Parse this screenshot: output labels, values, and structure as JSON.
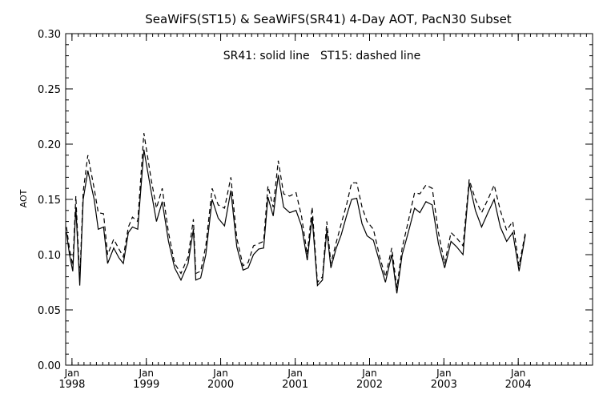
{
  "chart_data": {
    "type": "line",
    "title": "SeaWiFS(ST15) & SeaWiFS(SR41) 4-Day AOT, PacN30 Subset",
    "annotation": "SR41: solid line   ST15: dashed line",
    "ylabel": "AOT",
    "xlabel": "",
    "xlim": [
      "1997-12-01",
      "2004-12-31"
    ],
    "ylim": [
      0.0,
      0.3
    ],
    "yticks": [
      "0.00",
      "0.05",
      "0.10",
      "0.15",
      "0.20",
      "0.25",
      "0.30"
    ],
    "xticks": [
      {
        "month": "Jan",
        "year": "1998",
        "date": "1998-01-01"
      },
      {
        "month": "Jan",
        "year": "1999",
        "date": "1999-01-01"
      },
      {
        "month": "Jan",
        "year": "2000",
        "date": "2000-01-01"
      },
      {
        "month": "Jan",
        "year": "2001",
        "date": "2001-01-01"
      },
      {
        "month": "Jan",
        "year": "2002",
        "date": "2002-01-01"
      },
      {
        "month": "Jan",
        "year": "2003",
        "date": "2003-01-01"
      },
      {
        "month": "Jan",
        "year": "2004",
        "date": "2004-01-01"
      }
    ],
    "grid": false,
    "legend": "none",
    "series": [
      {
        "name": "SR41",
        "style": "solid",
        "color": "#000000",
        "points": [
          [
            "1997-12-05",
            0.12
          ],
          [
            "1997-12-20",
            0.1
          ],
          [
            "1998-01-05",
            0.085
          ],
          [
            "1998-01-20",
            0.143
          ],
          [
            "1998-02-08",
            0.072
          ],
          [
            "1998-02-25",
            0.15
          ],
          [
            "1998-03-20",
            0.176
          ],
          [
            "1998-04-20",
            0.15
          ],
          [
            "1998-05-10",
            0.123
          ],
          [
            "1998-06-05",
            0.125
          ],
          [
            "1998-06-25",
            0.092
          ],
          [
            "1998-07-25",
            0.106
          ],
          [
            "1998-08-20",
            0.097
          ],
          [
            "1998-09-10",
            0.092
          ],
          [
            "1998-10-05",
            0.12
          ],
          [
            "1998-10-25",
            0.125
          ],
          [
            "1998-11-20",
            0.123
          ],
          [
            "1998-12-20",
            0.195
          ],
          [
            "1999-01-25",
            0.157
          ],
          [
            "1999-02-20",
            0.13
          ],
          [
            "1999-03-20",
            0.148
          ],
          [
            "1999-04-20",
            0.112
          ],
          [
            "1999-05-20",
            0.088
          ],
          [
            "1999-06-20",
            0.077
          ],
          [
            "1999-07-25",
            0.092
          ],
          [
            "1999-08-20",
            0.123
          ],
          [
            "1999-09-01",
            0.077
          ],
          [
            "1999-09-25",
            0.079
          ],
          [
            "1999-10-20",
            0.1
          ],
          [
            "1999-11-20",
            0.15
          ],
          [
            "1999-12-20",
            0.133
          ],
          [
            "2000-01-20",
            0.126
          ],
          [
            "2000-02-20",
            0.158
          ],
          [
            "2000-03-20",
            0.107
          ],
          [
            "2000-04-20",
            0.086
          ],
          [
            "2000-05-15",
            0.088
          ],
          [
            "2000-06-10",
            0.1
          ],
          [
            "2000-07-05",
            0.105
          ],
          [
            "2000-07-30",
            0.106
          ],
          [
            "2000-08-20",
            0.152
          ],
          [
            "2000-09-15",
            0.135
          ],
          [
            "2000-10-10",
            0.172
          ],
          [
            "2000-11-05",
            0.143
          ],
          [
            "2000-12-05",
            0.138
          ],
          [
            "2001-01-05",
            0.14
          ],
          [
            "2001-02-01",
            0.126
          ],
          [
            "2001-03-01",
            0.095
          ],
          [
            "2001-03-25",
            0.134
          ],
          [
            "2001-04-20",
            0.072
          ],
          [
            "2001-05-15",
            0.077
          ],
          [
            "2001-06-05",
            0.122
          ],
          [
            "2001-06-25",
            0.088
          ],
          [
            "2001-07-20",
            0.105
          ],
          [
            "2001-08-15",
            0.118
          ],
          [
            "2001-09-10",
            0.135
          ],
          [
            "2001-10-05",
            0.15
          ],
          [
            "2001-10-30",
            0.151
          ],
          [
            "2001-11-25",
            0.128
          ],
          [
            "2001-12-20",
            0.117
          ],
          [
            "2002-01-20",
            0.113
          ],
          [
            "2002-02-20",
            0.093
          ],
          [
            "2002-03-20",
            0.075
          ],
          [
            "2002-04-20",
            0.1
          ],
          [
            "2002-05-15",
            0.065
          ],
          [
            "2002-06-10",
            0.1
          ],
          [
            "2002-07-10",
            0.12
          ],
          [
            "2002-08-10",
            0.142
          ],
          [
            "2002-09-05",
            0.138
          ],
          [
            "2002-10-05",
            0.148
          ],
          [
            "2002-11-05",
            0.145
          ],
          [
            "2002-12-05",
            0.11
          ],
          [
            "2003-01-05",
            0.088
          ],
          [
            "2003-02-05",
            0.112
          ],
          [
            "2003-03-05",
            0.107
          ],
          [
            "2003-04-05",
            0.1
          ],
          [
            "2003-05-05",
            0.165
          ],
          [
            "2003-06-05",
            0.14
          ],
          [
            "2003-07-05",
            0.125
          ],
          [
            "2003-08-05",
            0.138
          ],
          [
            "2003-09-05",
            0.15
          ],
          [
            "2003-10-05",
            0.125
          ],
          [
            "2003-11-05",
            0.112
          ],
          [
            "2003-12-05",
            0.12
          ],
          [
            "2004-01-05",
            0.085
          ],
          [
            "2004-02-05",
            0.118
          ]
        ]
      },
      {
        "name": "ST15",
        "style": "dashed",
        "color": "#000000",
        "points": [
          [
            "1997-12-05",
            0.125
          ],
          [
            "1997-12-20",
            0.105
          ],
          [
            "1998-01-05",
            0.09
          ],
          [
            "1998-01-20",
            0.153
          ],
          [
            "1998-02-08",
            0.078
          ],
          [
            "1998-02-25",
            0.157
          ],
          [
            "1998-03-20",
            0.19
          ],
          [
            "1998-04-20",
            0.16
          ],
          [
            "1998-05-10",
            0.138
          ],
          [
            "1998-06-05",
            0.137
          ],
          [
            "1998-06-25",
            0.1
          ],
          [
            "1998-07-25",
            0.114
          ],
          [
            "1998-08-20",
            0.105
          ],
          [
            "1998-09-10",
            0.098
          ],
          [
            "1998-10-05",
            0.125
          ],
          [
            "1998-10-25",
            0.134
          ],
          [
            "1998-11-20",
            0.13
          ],
          [
            "1998-12-20",
            0.21
          ],
          [
            "1999-01-25",
            0.168
          ],
          [
            "1999-02-20",
            0.142
          ],
          [
            "1999-03-20",
            0.16
          ],
          [
            "1999-04-20",
            0.12
          ],
          [
            "1999-05-20",
            0.092
          ],
          [
            "1999-06-20",
            0.083
          ],
          [
            "1999-07-25",
            0.098
          ],
          [
            "1999-08-20",
            0.132
          ],
          [
            "1999-09-01",
            0.083
          ],
          [
            "1999-09-25",
            0.085
          ],
          [
            "1999-10-20",
            0.108
          ],
          [
            "1999-11-20",
            0.16
          ],
          [
            "1999-12-20",
            0.145
          ],
          [
            "2000-01-20",
            0.142
          ],
          [
            "2000-02-20",
            0.17
          ],
          [
            "2000-03-20",
            0.115
          ],
          [
            "2000-04-20",
            0.09
          ],
          [
            "2000-05-15",
            0.093
          ],
          [
            "2000-06-10",
            0.108
          ],
          [
            "2000-07-05",
            0.11
          ],
          [
            "2000-07-30",
            0.112
          ],
          [
            "2000-08-20",
            0.162
          ],
          [
            "2000-09-15",
            0.143
          ],
          [
            "2000-10-10",
            0.185
          ],
          [
            "2000-11-05",
            0.155
          ],
          [
            "2000-12-05",
            0.153
          ],
          [
            "2001-01-05",
            0.156
          ],
          [
            "2001-02-01",
            0.135
          ],
          [
            "2001-03-01",
            0.1
          ],
          [
            "2001-03-25",
            0.143
          ],
          [
            "2001-04-20",
            0.075
          ],
          [
            "2001-05-15",
            0.08
          ],
          [
            "2001-06-05",
            0.13
          ],
          [
            "2001-06-25",
            0.092
          ],
          [
            "2001-07-20",
            0.11
          ],
          [
            "2001-08-15",
            0.128
          ],
          [
            "2001-09-10",
            0.145
          ],
          [
            "2001-10-05",
            0.165
          ],
          [
            "2001-10-30",
            0.165
          ],
          [
            "2001-11-25",
            0.143
          ],
          [
            "2001-12-20",
            0.13
          ],
          [
            "2002-01-20",
            0.123
          ],
          [
            "2002-02-20",
            0.098
          ],
          [
            "2002-03-20",
            0.08
          ],
          [
            "2002-04-20",
            0.106
          ],
          [
            "2002-05-15",
            0.07
          ],
          [
            "2002-06-10",
            0.106
          ],
          [
            "2002-07-10",
            0.13
          ],
          [
            "2002-08-10",
            0.156
          ],
          [
            "2002-09-05",
            0.155
          ],
          [
            "2002-10-05",
            0.163
          ],
          [
            "2002-11-05",
            0.16
          ],
          [
            "2002-12-05",
            0.12
          ],
          [
            "2003-01-05",
            0.092
          ],
          [
            "2003-02-05",
            0.12
          ],
          [
            "2003-03-05",
            0.115
          ],
          [
            "2003-04-05",
            0.108
          ],
          [
            "2003-05-05",
            0.168
          ],
          [
            "2003-06-05",
            0.15
          ],
          [
            "2003-07-05",
            0.138
          ],
          [
            "2003-08-05",
            0.15
          ],
          [
            "2003-09-05",
            0.163
          ],
          [
            "2003-10-05",
            0.14
          ],
          [
            "2003-11-05",
            0.122
          ],
          [
            "2003-12-05",
            0.13
          ],
          [
            "2004-01-05",
            0.09
          ],
          [
            "2004-02-05",
            0.12
          ]
        ]
      }
    ]
  }
}
